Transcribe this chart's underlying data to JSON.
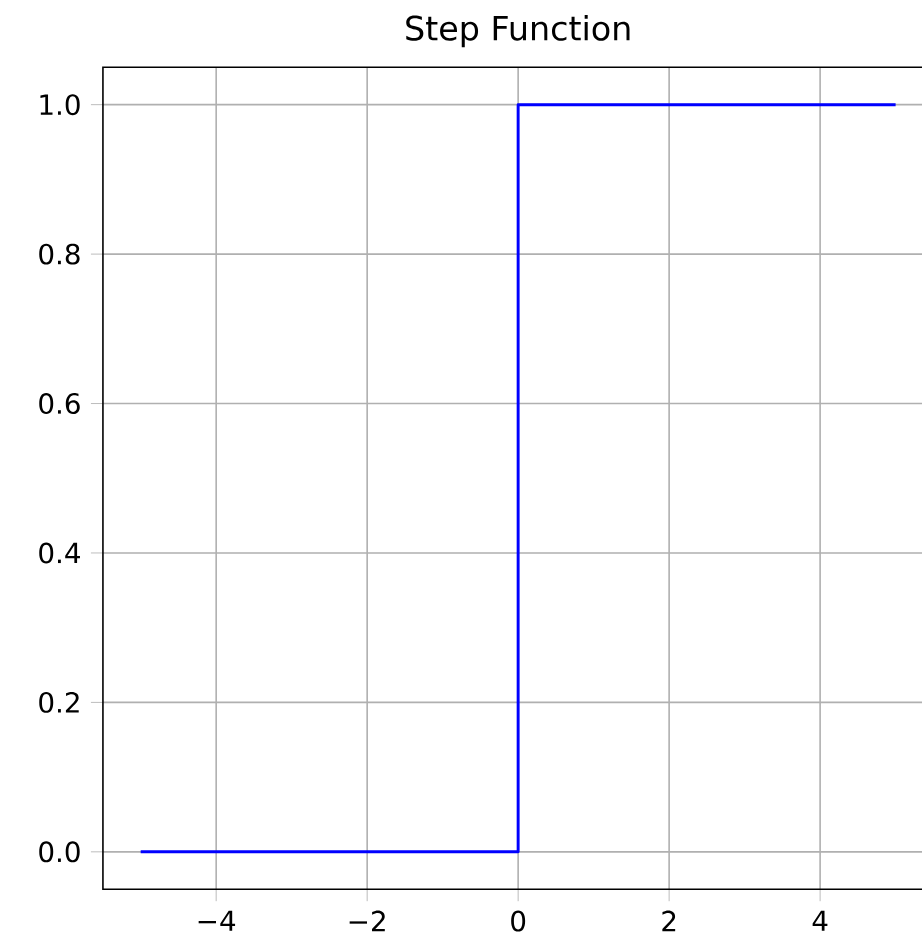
{
  "chart_data": {
    "type": "step",
    "title": "Step Function",
    "x": [
      -5,
      0,
      5
    ],
    "series": [
      {
        "color": "#0000ff",
        "values": [
          0,
          1,
          1
        ]
      }
    ],
    "xlim": [
      -5.5,
      5.5
    ],
    "ylim": [
      -0.05,
      1.05
    ],
    "xticks": [
      {
        "value": -4,
        "label": "−4"
      },
      {
        "value": -2,
        "label": "−2"
      },
      0,
      2,
      4
    ],
    "yticks": [
      {
        "value": 0,
        "label": "0.0"
      },
      {
        "value": 0.2,
        "label": "0.2"
      },
      {
        "value": 0.4,
        "label": "0.4"
      },
      {
        "value": 0.6,
        "label": "0.6"
      },
      {
        "value": 0.8,
        "label": "0.8"
      },
      {
        "value": 1,
        "label": "1.0"
      }
    ],
    "grid": true,
    "marker": "none"
  }
}
